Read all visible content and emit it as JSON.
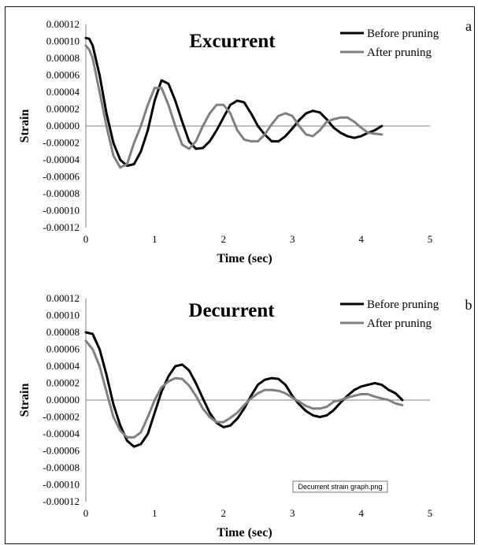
{
  "chart_data": [
    {
      "panel_label": "a",
      "type": "line",
      "title": "Excurrent",
      "xlabel": "Time (sec)",
      "ylabel": "Strain",
      "xlim": [
        0,
        5
      ],
      "ylim": [
        -0.00012,
        0.00012
      ],
      "x_ticks": [
        "0",
        "1",
        "2",
        "3",
        "4",
        "5"
      ],
      "y_ticks": [
        "0.00012",
        "0.00010",
        "0.00008",
        "0.00006",
        "0.00004",
        "0.00002",
        "0.00000",
        "-0.00002",
        "-0.00004",
        "-0.00006",
        "-0.00008",
        "-0.00010",
        "-0.00012"
      ],
      "legend_position": "top-right",
      "series": [
        {
          "name": "Before pruning",
          "color": "#000000",
          "x": [
            0.0,
            0.05,
            0.1,
            0.2,
            0.3,
            0.4,
            0.5,
            0.6,
            0.7,
            0.8,
            0.9,
            1.0,
            1.1,
            1.2,
            1.3,
            1.4,
            1.5,
            1.6,
            1.7,
            1.8,
            1.9,
            2.0,
            2.1,
            2.2,
            2.3,
            2.4,
            2.5,
            2.6,
            2.7,
            2.8,
            2.9,
            3.0,
            3.1,
            3.2,
            3.3,
            3.4,
            3.5,
            3.6,
            3.7,
            3.8,
            3.9,
            4.0,
            4.1,
            4.2,
            4.3
          ],
          "y": [
            0.000104,
            0.000103,
            9.5e-05,
            6e-05,
            1.5e-05,
            -2e-05,
            -4e-05,
            -4.7e-05,
            -4.5e-05,
            -3e-05,
            -5e-06,
            3e-05,
            5.4e-05,
            5e-05,
            3e-05,
            5e-06,
            -1.8e-05,
            -2.7e-05,
            -2.6e-05,
            -1.8e-05,
            -5e-06,
            1e-05,
            2.5e-05,
            3e-05,
            2.8e-05,
            1.5e-05,
            0.0,
            -1e-05,
            -1.8e-05,
            -1.8e-05,
            -1.2e-05,
            -3e-06,
            7e-06,
            1.5e-05,
            1.8e-05,
            1.6e-05,
            8e-06,
            -2e-06,
            -8e-06,
            -1.2e-05,
            -1.4e-05,
            -1.2e-05,
            -8e-06,
            -5e-06,
            0.0
          ]
        },
        {
          "name": "After pruning",
          "color": "#808080",
          "x": [
            0.0,
            0.05,
            0.1,
            0.2,
            0.3,
            0.4,
            0.5,
            0.6,
            0.7,
            0.8,
            0.9,
            1.0,
            1.1,
            1.2,
            1.3,
            1.4,
            1.5,
            1.6,
            1.7,
            1.8,
            1.9,
            2.0,
            2.1,
            2.2,
            2.3,
            2.4,
            2.5,
            2.6,
            2.7,
            2.8,
            2.9,
            3.0,
            3.1,
            3.2,
            3.3,
            3.4,
            3.5,
            3.6,
            3.7,
            3.8,
            3.9,
            4.0,
            4.1,
            4.2,
            4.3
          ],
          "y": [
            9.5e-05,
            9e-05,
            8e-05,
            4e-05,
            0.0,
            -3.5e-05,
            -4.9e-05,
            -4.5e-05,
            -2e-05,
            0.0,
            2.5e-05,
            4.5e-05,
            4.5e-05,
            2.5e-05,
            0.0,
            -2.2e-05,
            -2.7e-05,
            -1.8e-05,
            0.0,
            1.5e-05,
            2.5e-05,
            2.5e-05,
            1.5e-05,
            -5e-06,
            -1.6e-05,
            -1.8e-05,
            -1.8e-05,
            -1e-05,
            2e-06,
            1.2e-05,
            1.5e-05,
            1.2e-05,
            0.0,
            -1e-05,
            -1.2e-05,
            -5e-06,
            5e-06,
            8e-06,
            1e-05,
            1e-05,
            5e-06,
            -2e-06,
            -8e-06,
            -9e-06,
            -1e-05
          ]
        }
      ]
    },
    {
      "panel_label": "b",
      "type": "line",
      "title": "Decurrent",
      "xlabel": "Time (sec)",
      "ylabel": "Strain",
      "xlim": [
        0,
        5
      ],
      "ylim": [
        -0.00012,
        0.00012
      ],
      "x_ticks": [
        "0",
        "1",
        "2",
        "3",
        "4",
        "5"
      ],
      "y_ticks": [
        "0.00012",
        "0.00010",
        "0.00008",
        "0.00006",
        "0.00004",
        "0.00002",
        "0.00000",
        "-0.00002",
        "-0.00004",
        "-0.00006",
        "-0.00008",
        "-0.00010",
        "-0.00012"
      ],
      "legend_position": "top-right",
      "annotation": "Decurrent strain graph.png",
      "series": [
        {
          "name": "Before pruning",
          "color": "#000000",
          "x": [
            0.0,
            0.1,
            0.2,
            0.3,
            0.4,
            0.5,
            0.6,
            0.7,
            0.8,
            0.9,
            1.0,
            1.1,
            1.2,
            1.3,
            1.4,
            1.5,
            1.6,
            1.7,
            1.8,
            1.9,
            2.0,
            2.1,
            2.2,
            2.3,
            2.4,
            2.5,
            2.6,
            2.7,
            2.8,
            2.9,
            3.0,
            3.1,
            3.2,
            3.3,
            3.4,
            3.5,
            3.6,
            3.7,
            3.8,
            3.9,
            4.0,
            4.1,
            4.2,
            4.3,
            4.4,
            4.5,
            4.6
          ],
          "y": [
            8e-05,
            7.8e-05,
            6e-05,
            3e-05,
            -5e-06,
            -3e-05,
            -4.8e-05,
            -5.5e-05,
            -5.2e-05,
            -4e-05,
            -1.5e-05,
            1e-05,
            2.8e-05,
            4e-05,
            4.2e-05,
            3.5e-05,
            2e-05,
            2e-06,
            -1.5e-05,
            -2.7e-05,
            -3.2e-05,
            -3e-05,
            -2.2e-05,
            -1e-05,
            5e-06,
            1.8e-05,
            2.4e-05,
            2.6e-05,
            2.5e-05,
            1.8e-05,
            5e-06,
            -5e-06,
            -1.3e-05,
            -1.8e-05,
            -2e-05,
            -1.8e-05,
            -1.2e-05,
            -3e-06,
            5e-06,
            1.2e-05,
            1.6e-05,
            1.8e-05,
            2e-05,
            1.8e-05,
            1.2e-05,
            8e-06,
            0.0
          ]
        },
        {
          "name": "After pruning",
          "color": "#808080",
          "x": [
            0.0,
            0.1,
            0.2,
            0.3,
            0.4,
            0.5,
            0.6,
            0.7,
            0.8,
            0.9,
            1.0,
            1.1,
            1.2,
            1.3,
            1.4,
            1.5,
            1.6,
            1.7,
            1.8,
            1.9,
            2.0,
            2.1,
            2.2,
            2.3,
            2.4,
            2.5,
            2.6,
            2.7,
            2.8,
            2.9,
            3.0,
            3.1,
            3.2,
            3.3,
            3.4,
            3.5,
            3.6,
            3.7,
            3.8,
            3.9,
            4.0,
            4.1,
            4.2,
            4.3,
            4.4,
            4.5,
            4.6
          ],
          "y": [
            7e-05,
            6e-05,
            4e-05,
            1e-05,
            -2e-05,
            -3.6e-05,
            -4.4e-05,
            -4.4e-05,
            -3.8e-05,
            -2e-05,
            0.0,
            1.5e-05,
            2.2e-05,
            2.6e-05,
            2.5e-05,
            1.7e-05,
            5e-06,
            -1e-05,
            -2e-05,
            -2.6e-05,
            -2.6e-05,
            -2.1e-05,
            -1.5e-05,
            -6e-06,
            2e-06,
            8e-06,
            1.2e-05,
            1.2e-05,
            1.1e-05,
            8e-06,
            3e-06,
            -2e-06,
            -7e-06,
            -1e-05,
            -1e-05,
            -8e-06,
            -2e-06,
            0.0,
            3e-06,
            5e-06,
            7e-06,
            7e-06,
            4e-06,
            2e-06,
            0.0,
            -4e-06,
            -6e-06
          ]
        }
      ]
    }
  ]
}
